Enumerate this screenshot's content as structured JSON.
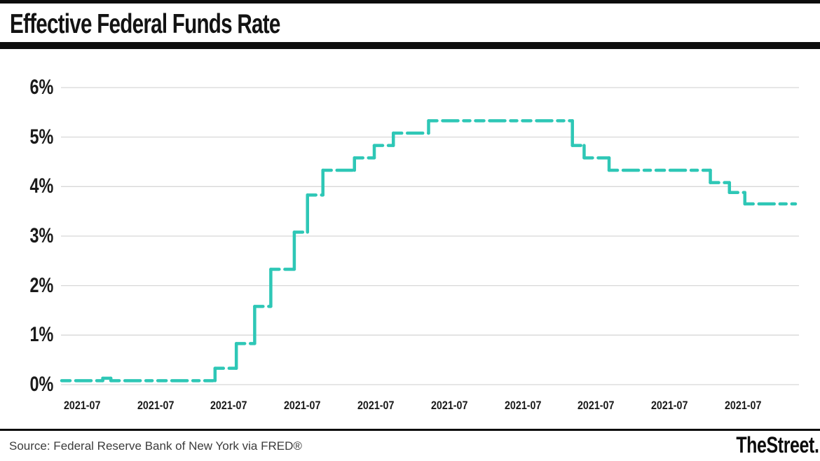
{
  "header": {
    "title": "Effective Federal Funds Rate"
  },
  "footer": {
    "source": "Source: Federal Reserve Bank of New York via FRED®",
    "brand": "TheStreet."
  },
  "chart_data": {
    "type": "line",
    "subtype": "step",
    "title": "Effective Federal Funds Rate",
    "xlabel": "",
    "ylabel": "",
    "ylim": [
      0,
      6
    ],
    "grid": "horizontal",
    "legend": "none",
    "line_color": "#2ec7b6",
    "line_style": "dashed",
    "gridline_color": "#d8d8d8",
    "y_ticks": [
      "0%",
      "1%",
      "2%",
      "3%",
      "4%",
      "5%",
      "6%"
    ],
    "y_tick_values": [
      0,
      1,
      2,
      3,
      4,
      5,
      6
    ],
    "x_ticks": [
      "2021-07",
      "2021-07",
      "2021-07",
      "2021-07",
      "2021-07",
      "2021-07",
      "2021-07",
      "2021-07",
      "2021-07",
      "2021-07"
    ],
    "series_name": "Effective Federal Funds Rate (%)",
    "segments": [
      {
        "x0": 0.0,
        "x1": 0.056,
        "rate": 0.08
      },
      {
        "x0": 0.056,
        "x1": 0.067,
        "rate": 0.13
      },
      {
        "x0": 0.067,
        "x1": 0.209,
        "rate": 0.08
      },
      {
        "x0": 0.209,
        "x1": 0.238,
        "rate": 0.33
      },
      {
        "x0": 0.238,
        "x1": 0.263,
        "rate": 0.83
      },
      {
        "x0": 0.263,
        "x1": 0.285,
        "rate": 1.58
      },
      {
        "x0": 0.285,
        "x1": 0.317,
        "rate": 2.33
      },
      {
        "x0": 0.317,
        "x1": 0.335,
        "rate": 3.08
      },
      {
        "x0": 0.335,
        "x1": 0.356,
        "rate": 3.83
      },
      {
        "x0": 0.356,
        "x1": 0.399,
        "rate": 4.33
      },
      {
        "x0": 0.399,
        "x1": 0.426,
        "rate": 4.58
      },
      {
        "x0": 0.426,
        "x1": 0.452,
        "rate": 4.83
      },
      {
        "x0": 0.452,
        "x1": 0.5,
        "rate": 5.08
      },
      {
        "x0": 0.5,
        "x1": 0.696,
        "rate": 5.33
      },
      {
        "x0": 0.696,
        "x1": 0.712,
        "rate": 4.83
      },
      {
        "x0": 0.712,
        "x1": 0.746,
        "rate": 4.58
      },
      {
        "x0": 0.746,
        "x1": 0.884,
        "rate": 4.33
      },
      {
        "x0": 0.884,
        "x1": 0.91,
        "rate": 4.08
      },
      {
        "x0": 0.91,
        "x1": 0.931,
        "rate": 3.88
      },
      {
        "x0": 0.931,
        "x1": 1.0,
        "rate": 3.65
      }
    ]
  }
}
